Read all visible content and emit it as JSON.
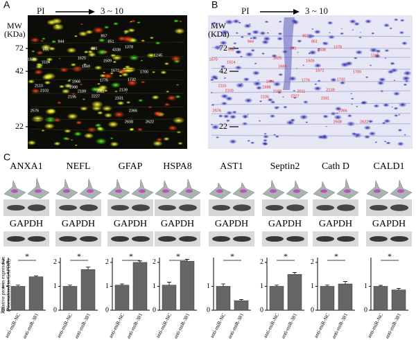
{
  "panel_labels": [
    "A",
    "B",
    "C"
  ],
  "gel": {
    "pi_label": "PI",
    "pi_range": "3 ~ 10",
    "mw_label": "MW",
    "mw_unit": "(KDa)",
    "mw_marks": [
      "72",
      "42",
      "22"
    ],
    "spots": [
      "857",
      "851",
      "944",
      "995",
      "891",
      "4338",
      "1378",
      "1245",
      "1570",
      "1514",
      "1625",
      "1509",
      "1669",
      "1672",
      "1700",
      "1732",
      "1776",
      "1966",
      "1988",
      "2011",
      "2110",
      "2103",
      "2189",
      "2139",
      "2195",
      "2227",
      "2331",
      "2366",
      "2576",
      "2608",
      "2622"
    ]
  },
  "y_label": [
    "Relative protein expression",
    "(Normalized to GAPDH)"
  ],
  "chart_data": [
    {
      "type": "bar",
      "title": "ANXA1",
      "loading_control": "GAPDH",
      "significance": "*",
      "categories": [
        "anti-miR-NC",
        "anti-miR-381"
      ],
      "values": [
        1.0,
        1.4
      ],
      "errors": [
        0.05,
        0.04
      ],
      "color": "#666666",
      "ylim": [
        0,
        2.2
      ],
      "yticks": [
        0,
        1,
        2
      ]
    },
    {
      "type": "bar",
      "title": "NEFL",
      "loading_control": "GAPDH",
      "significance": "*",
      "categories": [
        "anti-miR-NC",
        "anti-miR-381"
      ],
      "values": [
        1.0,
        1.7
      ],
      "errors": [
        0.05,
        0.1
      ],
      "color": "#666666",
      "ylim": [
        0,
        2.2
      ],
      "yticks": [
        0,
        1,
        2
      ]
    },
    {
      "type": "bar",
      "title": "GFAP",
      "loading_control": "GAPDH",
      "significance": "*",
      "categories": [
        "anti-miR-NC",
        "anti-miR-381"
      ],
      "values": [
        1.05,
        2.0
      ],
      "errors": [
        0.05,
        0.06
      ],
      "color": "#666666",
      "ylim": [
        0,
        2.2
      ],
      "yticks": [
        0,
        1,
        2
      ]
    },
    {
      "type": "bar",
      "title": "HSPA8",
      "loading_control": "GAPDH",
      "significance": "*",
      "categories": [
        "anti-miR-NC",
        "anti-miR-381"
      ],
      "values": [
        1.05,
        2.05
      ],
      "errors": [
        0.12,
        0.08
      ],
      "color": "#666666",
      "ylim": [
        0,
        2.2
      ],
      "yticks": [
        0,
        1,
        2
      ]
    },
    {
      "type": "bar",
      "title": "AST1",
      "loading_control": "GAPDH",
      "significance": "*",
      "categories": [
        "anti-miR-NC",
        "anti-miR-381"
      ],
      "values": [
        1.0,
        0.4
      ],
      "errors": [
        0.1,
        0.05
      ],
      "color": "#666666",
      "ylim": [
        0,
        2.2
      ],
      "yticks": [
        0,
        1
      ]
    },
    {
      "type": "bar",
      "title": "Septin2",
      "loading_control": "GAPDH",
      "significance": "*",
      "categories": [
        "anti-miR-NC",
        "anti-miR-381"
      ],
      "values": [
        1.0,
        1.5
      ],
      "errors": [
        0.05,
        0.08
      ],
      "color": "#666666",
      "ylim": [
        0,
        2.2
      ],
      "yticks": [
        0,
        1,
        2
      ]
    },
    {
      "type": "bar",
      "title": "Cath D",
      "loading_control": "GAPDH",
      "significance": "*",
      "categories": [
        "anti-miR-NC",
        "anti-miR-381"
      ],
      "values": [
        1.0,
        1.1
      ],
      "errors": [
        0.05,
        0.1
      ],
      "color": "#666666",
      "ylim": [
        0,
        2.2
      ],
      "yticks": [
        0,
        1,
        2
      ]
    },
    {
      "type": "bar",
      "title": "CALD1",
      "loading_control": "GAPDH",
      "significance": "*",
      "categories": [
        "anti-miR-NC",
        "anti-miR-381"
      ],
      "values": [
        1.0,
        0.85
      ],
      "errors": [
        0.04,
        0.06
      ],
      "color": "#666666",
      "ylim": [
        0,
        2.2
      ],
      "yticks": [
        0,
        1
      ]
    }
  ]
}
